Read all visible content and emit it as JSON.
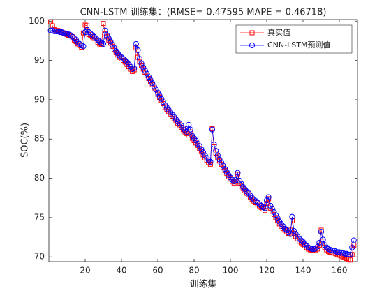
{
  "chart_data": {
    "type": "line",
    "title": "CNN-LSTM 训练集：(RMSE= 0.47595 MAPE  = 0.46718)",
    "x_label": "训练集",
    "y_label": "SOC(%)",
    "xlim": [
      0,
      170
    ],
    "ylim": [
      69.4,
      100.2
    ],
    "xticks": [
      20,
      40,
      60,
      80,
      100,
      120,
      140,
      160
    ],
    "yticks": [
      70,
      75,
      80,
      85,
      90,
      95,
      100
    ],
    "legend": "upper right",
    "x": [
      1,
      2,
      3,
      4,
      5,
      6,
      7,
      8,
      9,
      10,
      11,
      12,
      13,
      14,
      15,
      16,
      17,
      18,
      19,
      20,
      21,
      22,
      23,
      24,
      25,
      26,
      27,
      28,
      29,
      30,
      31,
      32,
      33,
      34,
      35,
      36,
      37,
      38,
      39,
      40,
      41,
      42,
      43,
      44,
      45,
      46,
      47,
      48,
      49,
      50,
      51,
      52,
      53,
      54,
      55,
      56,
      57,
      58,
      59,
      60,
      61,
      62,
      63,
      64,
      65,
      66,
      67,
      68,
      69,
      70,
      71,
      72,
      73,
      74,
      75,
      76,
      77,
      78,
      79,
      80,
      81,
      82,
      83,
      84,
      85,
      86,
      87,
      88,
      89,
      90,
      91,
      92,
      93,
      94,
      95,
      96,
      97,
      98,
      99,
      100,
      101,
      102,
      103,
      104,
      105,
      106,
      107,
      108,
      109,
      110,
      111,
      112,
      113,
      114,
      115,
      116,
      117,
      118,
      119,
      120,
      121,
      122,
      123,
      124,
      125,
      126,
      127,
      128,
      129,
      130,
      131,
      132,
      133,
      134,
      135,
      136,
      137,
      138,
      139,
      140,
      141,
      142,
      143,
      144,
      145,
      146,
      147,
      148,
      149,
      150,
      151,
      152,
      153,
      154,
      155,
      156,
      157,
      158,
      159,
      160,
      161,
      162,
      163,
      164,
      165,
      166,
      167,
      168
    ],
    "series": [
      {
        "name": "真实值",
        "color": "#ff0000",
        "marker": "square",
        "values": [
          99.9,
          99.4,
          98.9,
          98.8,
          98.8,
          98.7,
          98.6,
          98.5,
          98.4,
          98.3,
          98.2,
          98.1,
          98.0,
          97.6,
          97.4,
          97.1,
          96.9,
          96.7,
          98.5,
          99.5,
          99.4,
          98.3,
          98.2,
          98.0,
          97.8,
          97.5,
          97.3,
          97.1,
          97.0,
          99.7,
          98.4,
          98.0,
          97.6,
          97.2,
          96.8,
          96.4,
          96.0,
          95.7,
          95.4,
          95.2,
          95.0,
          94.8,
          94.5,
          94.2,
          93.9,
          93.6,
          93.8,
          96.6,
          95.4,
          94.8,
          94.3,
          93.9,
          93.5,
          93.1,
          92.7,
          92.3,
          91.9,
          91.5,
          91.1,
          90.7,
          90.3,
          89.9,
          89.5,
          89.1,
          88.8,
          88.5,
          88.2,
          87.9,
          87.6,
          87.3,
          87.0,
          86.8,
          86.5,
          86.2,
          85.9,
          85.7,
          85.5,
          85.9,
          85.1,
          84.8,
          84.5,
          84.2,
          83.8,
          83.4,
          83.0,
          82.6,
          82.3,
          82.0,
          81.8,
          86.3,
          84.0,
          83.2,
          82.6,
          82.2,
          81.8,
          81.4,
          81.0,
          80.6,
          80.2,
          79.9,
          79.6,
          79.4,
          79.6,
          80.5,
          79.4,
          79.0,
          78.7,
          78.4,
          78.1,
          77.9,
          77.6,
          77.3,
          77.1,
          76.9,
          76.7,
          76.5,
          76.3,
          76.1,
          75.9,
          76.8,
          77.4,
          76.2,
          75.8,
          75.4,
          75.0,
          74.6,
          74.2,
          73.9,
          73.6,
          73.4,
          73.2,
          73.0,
          73.4,
          74.6,
          73.0,
          72.6,
          72.3,
          72.0,
          71.8,
          71.6,
          71.4,
          71.2,
          71.0,
          70.9,
          70.8,
          70.8,
          70.9,
          71.0,
          71.5,
          73.4,
          72.0,
          71.2,
          70.9,
          70.7,
          70.6,
          70.5,
          70.5,
          70.4,
          70.3,
          70.2,
          70.1,
          70.0,
          69.9,
          69.8,
          69.7,
          69.6,
          70.3,
          71.5
        ]
      },
      {
        "name": "CNN-LSTM预测值",
        "color": "#0000ff",
        "marker": "circle",
        "values": [
          98.8,
          98.8,
          98.7,
          98.7,
          98.7,
          98.6,
          98.6,
          98.5,
          98.4,
          98.4,
          98.3,
          98.2,
          98.0,
          97.8,
          97.6,
          97.3,
          97.1,
          96.9,
          96.8,
          98.6,
          98.9,
          98.6,
          98.4,
          98.2,
          98.0,
          97.8,
          97.6,
          97.4,
          97.2,
          97.1,
          98.8,
          98.2,
          97.8,
          97.4,
          97.0,
          96.6,
          96.2,
          95.9,
          95.6,
          95.4,
          95.2,
          95.0,
          94.8,
          94.5,
          94.2,
          93.9,
          94.0,
          97.1,
          96.3,
          95.2,
          94.6,
          94.1,
          93.7,
          93.3,
          92.9,
          92.5,
          92.1,
          91.7,
          91.3,
          90.9,
          90.5,
          90.1,
          89.7,
          89.3,
          89.0,
          88.7,
          88.4,
          88.1,
          87.8,
          87.5,
          87.2,
          87.0,
          86.7,
          86.4,
          86.1,
          85.9,
          86.8,
          86.2,
          85.4,
          85.1,
          84.8,
          84.4,
          84.1,
          83.7,
          83.3,
          82.9,
          82.6,
          82.3,
          82.1,
          86.2,
          84.3,
          83.5,
          82.9,
          82.4,
          82.0,
          81.6,
          81.2,
          80.8,
          80.4,
          80.1,
          79.8,
          79.6,
          79.8,
          80.7,
          79.7,
          79.3,
          78.9,
          78.6,
          78.3,
          78.1,
          77.8,
          77.5,
          77.3,
          77.1,
          76.9,
          76.7,
          76.5,
          76.3,
          76.2,
          77.2,
          77.6,
          76.5,
          76.1,
          75.7,
          75.3,
          74.9,
          74.5,
          74.2,
          73.9,
          73.6,
          73.4,
          73.1,
          72.9,
          75.1,
          73.3,
          72.9,
          72.6,
          72.3,
          72.1,
          71.9,
          71.6,
          71.4,
          71.2,
          71.1,
          71.0,
          71.0,
          71.1,
          71.3,
          71.8,
          73.2,
          72.2,
          71.5,
          71.2,
          71.0,
          70.9,
          70.8,
          70.8,
          70.7,
          70.6,
          70.6,
          70.5,
          70.5,
          70.4,
          70.4,
          70.3,
          70.3,
          71.2,
          72.1
        ]
      }
    ]
  }
}
